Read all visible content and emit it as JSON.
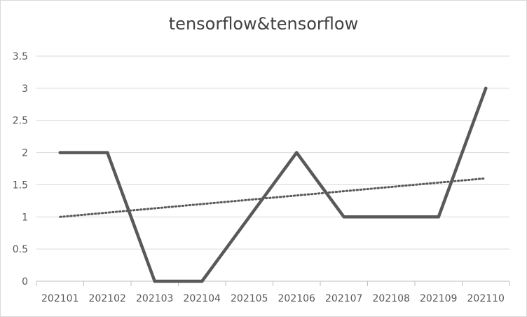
{
  "chart_data": {
    "type": "line",
    "title": "tensorflow&tensorflow",
    "xlabel": "",
    "ylabel": "",
    "categories": [
      "202101",
      "202102",
      "202103",
      "202104",
      "202105",
      "202106",
      "202107",
      "202108",
      "202109",
      "202110"
    ],
    "series": [
      {
        "values": [
          2,
          2,
          0,
          0,
          1,
          2,
          1,
          1,
          1,
          3
        ],
        "color": "#595959"
      }
    ],
    "trendline": {
      "type": "linear",
      "style": "dotted",
      "color": "#595959",
      "start": 1.0,
      "end": 1.6
    },
    "ylim": [
      0,
      3.5
    ],
    "yticks": [
      "0",
      "0.5",
      "1",
      "1.5",
      "2",
      "2.5",
      "3",
      "3.5"
    ],
    "grid": true,
    "legend": "none"
  }
}
